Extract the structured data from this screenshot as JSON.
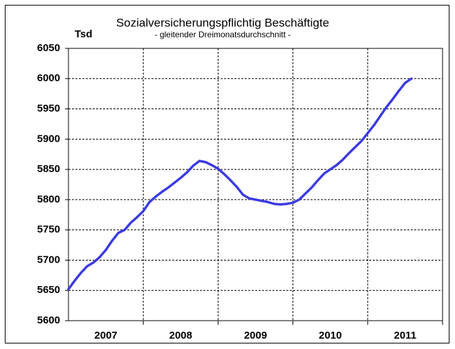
{
  "chart_data": {
    "type": "line",
    "title": "Sozialversicherungspflichtig Beschäftigte",
    "subtitle": "- gleitender Dreimonatsdurchschnitt -",
    "y_unit": "Tsd",
    "categories": [
      null,
      null,
      null,
      null,
      null,
      null,
      "2007",
      null,
      null,
      null,
      null,
      null,
      null,
      null,
      null,
      null,
      null,
      null,
      "2008",
      null,
      null,
      null,
      null,
      null,
      null,
      null,
      null,
      null,
      null,
      null,
      "2009",
      null,
      null,
      null,
      null,
      null,
      null,
      null,
      null,
      null,
      null,
      null,
      "2010",
      null,
      null,
      null,
      null,
      null,
      null,
      null,
      null,
      null,
      null,
      null,
      "2011",
      null
    ],
    "series": [
      {
        "name": "Sozialversicherungspflichtig Beschäftigte",
        "color": "#3b3be0",
        "values": [
          5652,
          5666,
          5679,
          5690,
          5696,
          5705,
          5717,
          5732,
          5745,
          5750,
          5762,
          5771,
          5781,
          5796,
          5805,
          5813,
          5820,
          5828,
          5836,
          5845,
          5856,
          5864,
          5862,
          5857,
          5851,
          5842,
          5832,
          5821,
          5808,
          5802,
          5800,
          5798,
          5796,
          5793,
          5792,
          5793,
          5795,
          5800,
          5810,
          5820,
          5832,
          5843,
          5850,
          5857,
          5866,
          5877,
          5887,
          5897,
          5910,
          5923,
          5938,
          5953,
          5966,
          5980,
          5993,
          6000
        ]
      }
    ],
    "ylim": [
      5600,
      6050
    ],
    "yticks": [
      5600,
      5650,
      5700,
      5750,
      5800,
      5850,
      5900,
      5950,
      6000,
      6050
    ],
    "grid": true
  }
}
